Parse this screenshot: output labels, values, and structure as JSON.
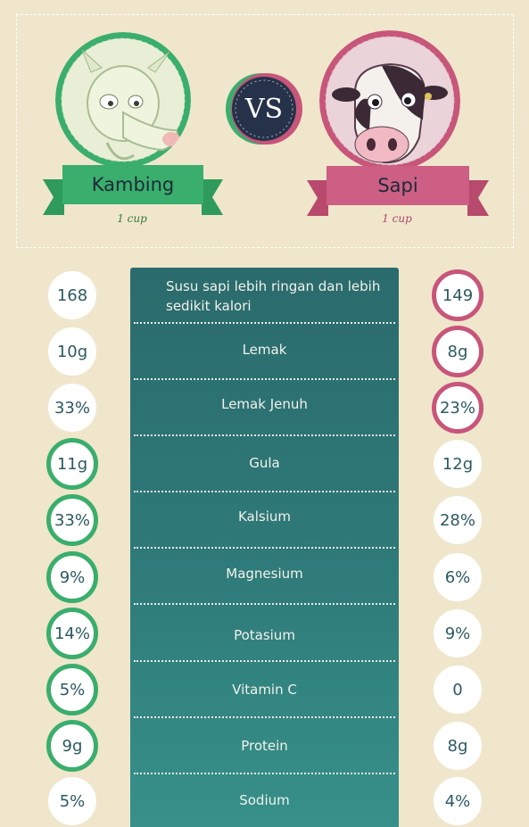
{
  "header": {
    "left": {
      "name": "Kambing",
      "serving": "1 cup"
    },
    "right": {
      "name": "Sapi",
      "serving": "1 cup"
    },
    "vs": "VS"
  },
  "colors": {
    "goat_accent": "#3aae6c",
    "cow_accent": "#c8557a",
    "panel": "#2f7b7a",
    "background": "#efe6cc"
  },
  "rows": [
    {
      "label": "Susu sapi lebih ringan dan lebih sedikit kalori",
      "left": "168",
      "right": "149",
      "winner": "right"
    },
    {
      "label": "Lemak",
      "left": "10g",
      "right": "8g",
      "winner": "right"
    },
    {
      "label": "Lemak Jenuh",
      "left": "33%",
      "right": "23%",
      "winner": "right"
    },
    {
      "label": "Gula",
      "left": "11g",
      "right": "12g",
      "winner": "left"
    },
    {
      "label": "Kalsium",
      "left": "33%",
      "right": "28%",
      "winner": "left"
    },
    {
      "label": "Magnesium",
      "left": "9%",
      "right": "6%",
      "winner": "left"
    },
    {
      "label": "Potasium",
      "left": "14%",
      "right": "9%",
      "winner": "left"
    },
    {
      "label": "Vitamin C",
      "left": "5%",
      "right": "0",
      "winner": "left"
    },
    {
      "label": "Protein",
      "left": "9g",
      "right": "8g",
      "winner": "left"
    },
    {
      "label": "Sodium",
      "left": "5%",
      "right": "4%",
      "winner": "none"
    }
  ]
}
